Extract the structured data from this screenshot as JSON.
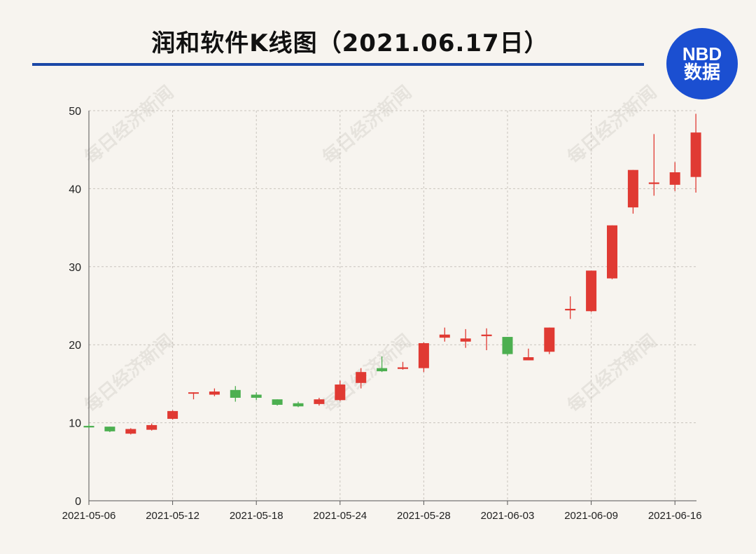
{
  "title": "润和软件K线图（2021.06.17日）",
  "logo": {
    "line1": "NBD",
    "line2": "数据"
  },
  "watermark": "每日经济新闻",
  "colors": {
    "up": "#e03a33",
    "down": "#4caf50",
    "rule": "#1a47a6",
    "logo_bg": "#1b4fd1"
  },
  "chart_data": {
    "type": "candlestick",
    "title": "润和软件K线图（2021.06.17日）",
    "xlabel": "",
    "ylabel": "",
    "ylim": [
      0,
      50
    ],
    "yticks": [
      0,
      10,
      20,
      30,
      40,
      50
    ],
    "xticks": [
      "2021-05-06",
      "2021-05-12",
      "2021-05-18",
      "2021-05-24",
      "2021-05-28",
      "2021-06-03",
      "2021-06-09",
      "2021-06-16"
    ],
    "grid": true,
    "candles": [
      {
        "date": "2021-05-06",
        "open": 9.6,
        "high": 9.8,
        "low": 9.3,
        "close": 9.4
      },
      {
        "date": "2021-05-07",
        "open": 9.5,
        "high": 9.5,
        "low": 8.8,
        "close": 8.9
      },
      {
        "date": "2021-05-10",
        "open": 8.6,
        "high": 9.3,
        "low": 8.5,
        "close": 9.2
      },
      {
        "date": "2021-05-11",
        "open": 9.1,
        "high": 9.9,
        "low": 9.0,
        "close": 9.7
      },
      {
        "date": "2021-05-12",
        "open": 10.5,
        "high": 11.6,
        "low": 10.4,
        "close": 11.5
      },
      {
        "date": "2021-05-13",
        "open": 13.8,
        "high": 13.9,
        "low": 13.0,
        "close": 13.9
      },
      {
        "date": "2021-05-14",
        "open": 13.6,
        "high": 14.4,
        "low": 13.4,
        "close": 14.0
      },
      {
        "date": "2021-05-17",
        "open": 14.2,
        "high": 14.7,
        "low": 12.7,
        "close": 13.2
      },
      {
        "date": "2021-05-18",
        "open": 13.6,
        "high": 13.9,
        "low": 12.9,
        "close": 13.2
      },
      {
        "date": "2021-05-19",
        "open": 13.0,
        "high": 13.0,
        "low": 12.2,
        "close": 12.3
      },
      {
        "date": "2021-05-20",
        "open": 12.5,
        "high": 12.7,
        "low": 12.0,
        "close": 12.1
      },
      {
        "date": "2021-05-21",
        "open": 12.4,
        "high": 13.2,
        "low": 12.2,
        "close": 13.0
      },
      {
        "date": "2021-05-24",
        "open": 12.9,
        "high": 15.4,
        "low": 12.8,
        "close": 14.9
      },
      {
        "date": "2021-05-25",
        "open": 15.1,
        "high": 17.0,
        "low": 14.4,
        "close": 16.5
      },
      {
        "date": "2021-05-26",
        "open": 17.0,
        "high": 18.5,
        "low": 16.5,
        "close": 16.6
      },
      {
        "date": "2021-05-27",
        "open": 16.9,
        "high": 17.8,
        "low": 16.8,
        "close": 17.1
      },
      {
        "date": "2021-05-28",
        "open": 17.0,
        "high": 20.3,
        "low": 16.5,
        "close": 20.2
      },
      {
        "date": "2021-05-31",
        "open": 20.9,
        "high": 22.2,
        "low": 20.4,
        "close": 21.3
      },
      {
        "date": "2021-06-01",
        "open": 20.4,
        "high": 22.0,
        "low": 19.6,
        "close": 20.8
      },
      {
        "date": "2021-06-02",
        "open": 21.1,
        "high": 22.1,
        "low": 19.3,
        "close": 21.3
      },
      {
        "date": "2021-06-03",
        "open": 21.0,
        "high": 21.0,
        "low": 18.6,
        "close": 18.8
      },
      {
        "date": "2021-06-04",
        "open": 18.0,
        "high": 19.5,
        "low": 18.0,
        "close": 18.4
      },
      {
        "date": "2021-06-07",
        "open": 19.1,
        "high": 22.2,
        "low": 18.8,
        "close": 22.2
      },
      {
        "date": "2021-06-08",
        "open": 24.4,
        "high": 26.2,
        "low": 23.3,
        "close": 24.6
      },
      {
        "date": "2021-06-09",
        "open": 24.3,
        "high": 29.5,
        "low": 24.2,
        "close": 29.5
      },
      {
        "date": "2021-06-10",
        "open": 28.5,
        "high": 35.3,
        "low": 28.4,
        "close": 35.3
      },
      {
        "date": "2021-06-11",
        "open": 37.6,
        "high": 42.4,
        "low": 36.8,
        "close": 42.4
      },
      {
        "date": "2021-06-15",
        "open": 40.6,
        "high": 47.0,
        "low": 39.1,
        "close": 40.8
      },
      {
        "date": "2021-06-16",
        "open": 40.5,
        "high": 43.4,
        "low": 39.7,
        "close": 42.1
      },
      {
        "date": "2021-06-17",
        "open": 41.5,
        "high": 49.6,
        "low": 39.5,
        "close": 47.2
      }
    ]
  }
}
